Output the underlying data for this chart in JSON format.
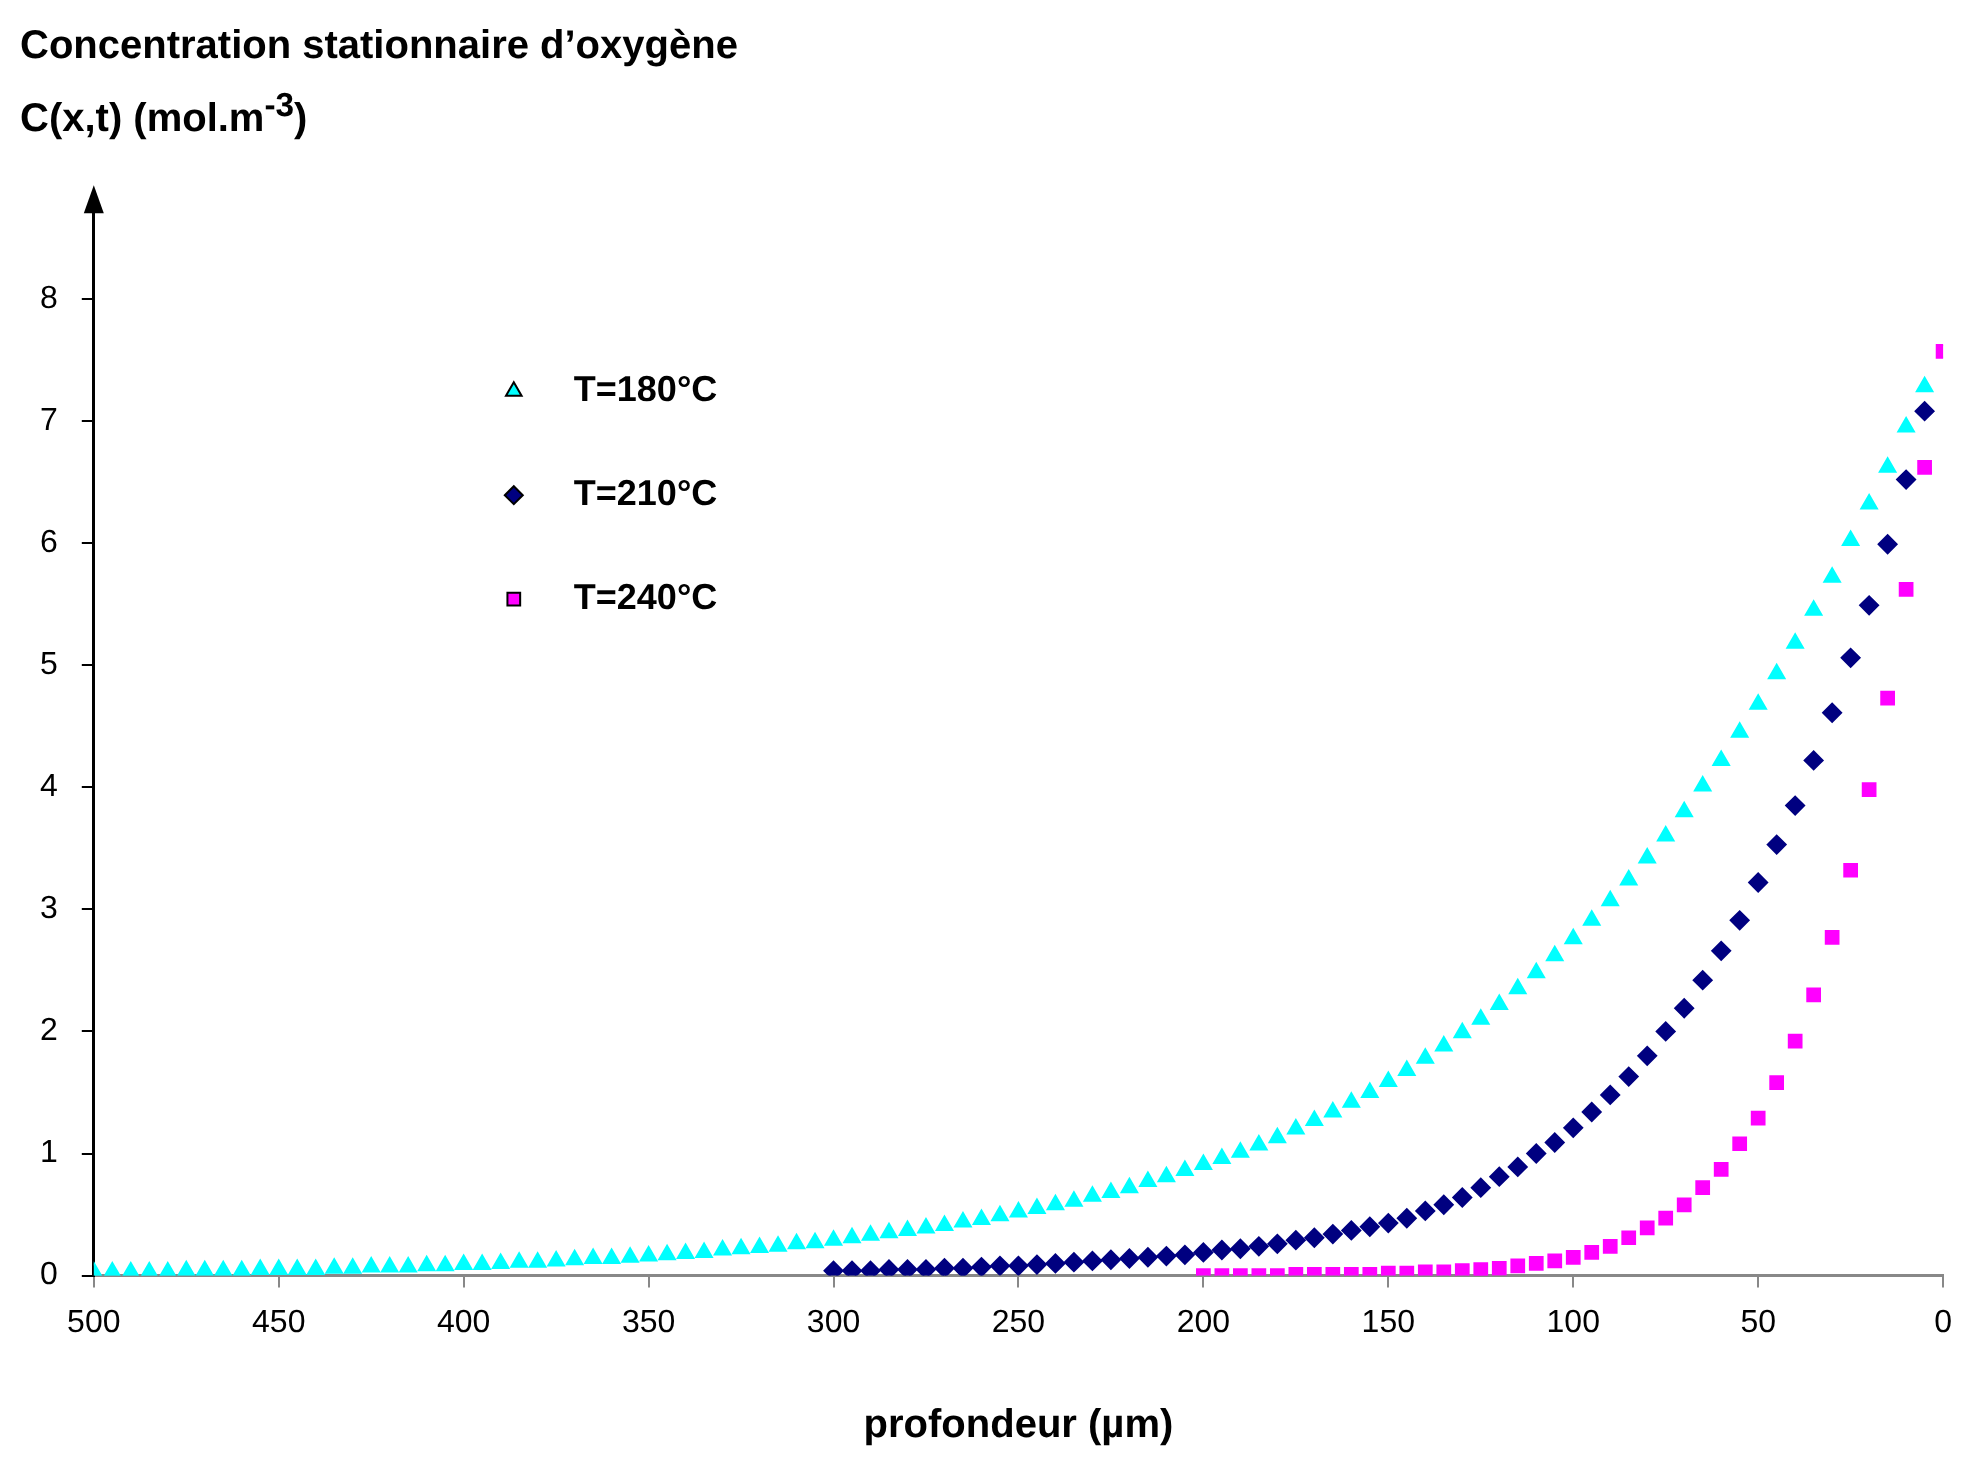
{
  "chart_data": {
    "type": "scatter",
    "ylabel": "Concentration stationnaire d’oxygène C(x,t)  (mol.m$^{-3}$)",
    "xlabel": "profondeur (µm)",
    "xlim": [
      500,
      0
    ],
    "xticks": [
      500,
      450,
      400,
      350,
      300,
      250,
      200,
      150,
      100,
      50,
      0
    ],
    "ylim": [
      0,
      8.8
    ],
    "yticks": [
      0,
      1,
      2,
      3,
      4,
      5,
      6,
      7,
      8
    ],
    "grid": false,
    "legend": "top left",
    "series": [
      {
        "name": "T=180°C",
        "color": "#00ffff",
        "marker": "triangle",
        "x": [
          5,
          10,
          15,
          20,
          25,
          30,
          35,
          40,
          45,
          50,
          55,
          60,
          65,
          70,
          75,
          80,
          85,
          90,
          95,
          100,
          105,
          110,
          115,
          120,
          125,
          130,
          135,
          140,
          145,
          150,
          155,
          160,
          165,
          170,
          175,
          180,
          185,
          190,
          195,
          200,
          205,
          210,
          215,
          220,
          225,
          230,
          235,
          240,
          245,
          250,
          255,
          260,
          265,
          270,
          275,
          280,
          285,
          290,
          295,
          300,
          305,
          310,
          315,
          320,
          325,
          330,
          335,
          340,
          345,
          350,
          355,
          360,
          365,
          370,
          375,
          380,
          385,
          390,
          395,
          400,
          405,
          410,
          415,
          420,
          425,
          430,
          435,
          440,
          445,
          450,
          455,
          460,
          465,
          470,
          475,
          480,
          485,
          490,
          495,
          500
        ],
        "values": [
          7.28,
          6.95,
          6.62,
          6.32,
          6.02,
          5.72,
          5.45,
          5.18,
          4.93,
          4.68,
          4.45,
          4.22,
          4.01,
          3.8,
          3.6,
          3.42,
          3.24,
          3.07,
          2.91,
          2.76,
          2.62,
          2.48,
          2.35,
          2.22,
          2.1,
          1.99,
          1.88,
          1.78,
          1.68,
          1.59,
          1.5,
          1.42,
          1.34,
          1.27,
          1.2,
          1.13,
          1.07,
          1.01,
          0.96,
          0.91,
          0.86,
          0.81,
          0.77,
          0.72,
          0.68,
          0.65,
          0.61,
          0.58,
          0.55,
          0.52,
          0.49,
          0.46,
          0.44,
          0.41,
          0.39,
          0.37,
          0.35,
          0.33,
          0.31,
          0.29,
          0.27,
          0.26,
          0.24,
          0.23,
          0.22,
          0.21,
          0.19,
          0.18,
          0.17,
          0.16,
          0.15,
          0.14,
          0.14,
          0.13,
          0.12,
          0.11,
          0.11,
          0.1,
          0.09,
          0.09,
          0.08,
          0.08,
          0.07,
          0.07,
          0.07,
          0.06,
          0.06,
          0.05,
          0.05,
          0.05,
          0.05,
          0.04,
          0.04,
          0.04,
          0.04,
          0.03,
          0.03,
          0.03,
          0.03,
          0.03
        ]
      },
      {
        "name": "T=210°C",
        "color": "#000080",
        "marker": "diamond",
        "x": [
          5,
          10,
          15,
          20,
          25,
          30,
          35,
          40,
          45,
          50,
          55,
          60,
          65,
          70,
          75,
          80,
          85,
          90,
          95,
          100,
          105,
          110,
          115,
          120,
          125,
          130,
          135,
          140,
          145,
          150,
          155,
          160,
          165,
          170,
          175,
          180,
          185,
          190,
          195,
          200,
          205,
          210,
          215,
          220,
          225,
          230,
          235,
          240,
          245,
          250,
          255,
          260,
          265,
          270,
          275,
          280,
          285,
          290,
          295,
          300
        ],
        "values": [
          7.08,
          6.52,
          5.99,
          5.49,
          5.06,
          4.61,
          4.22,
          3.85,
          3.53,
          3.22,
          2.91,
          2.66,
          2.42,
          2.19,
          2.0,
          1.8,
          1.63,
          1.48,
          1.34,
          1.21,
          1.09,
          1.0,
          0.89,
          0.81,
          0.72,
          0.64,
          0.58,
          0.53,
          0.47,
          0.43,
          0.4,
          0.37,
          0.34,
          0.31,
          0.29,
          0.26,
          0.24,
          0.22,
          0.21,
          0.19,
          0.17,
          0.16,
          0.15,
          0.14,
          0.13,
          0.12,
          0.11,
          0.1,
          0.09,
          0.08,
          0.08,
          0.07,
          0.06,
          0.06,
          0.05,
          0.05,
          0.05,
          0.04,
          0.04,
          0.04
        ]
      },
      {
        "name": "T=240°C",
        "color": "#ff00ff",
        "marker": "square",
        "x": [
          0,
          5,
          10,
          15,
          20,
          25,
          30,
          35,
          40,
          45,
          50,
          55,
          60,
          65,
          70,
          75,
          80,
          85,
          90,
          95,
          100,
          105,
          110,
          115,
          120,
          125,
          130,
          135,
          140,
          145,
          150,
          155,
          160,
          165,
          170,
          175,
          180,
          185,
          190,
          195,
          200
        ],
        "values": [
          7.57,
          6.62,
          5.62,
          4.73,
          3.98,
          3.32,
          2.77,
          2.3,
          1.92,
          1.58,
          1.29,
          1.08,
          0.87,
          0.72,
          0.58,
          0.47,
          0.39,
          0.31,
          0.24,
          0.19,
          0.15,
          0.12,
          0.1,
          0.08,
          0.06,
          0.05,
          0.04,
          0.03,
          0.03,
          0.02,
          0.02,
          0.01,
          0.01,
          0.01,
          0.01,
          0.01,
          0,
          0,
          0,
          0,
          0
        ]
      }
    ]
  }
}
